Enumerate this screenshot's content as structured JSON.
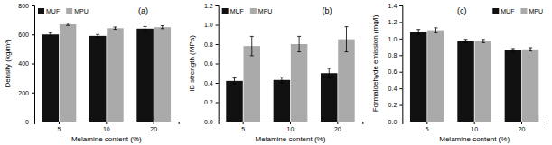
{
  "chart_data": [
    {
      "type": "bar",
      "categories": [
        "5",
        "10",
        "20"
      ],
      "xlabel": "Melamine content (%)",
      "ylabel": "Density (kg/m³)",
      "annotations": [
        "(a)"
      ],
      "ylim": [
        0,
        800
      ],
      "yticks": [
        0,
        200,
        400,
        600,
        800
      ],
      "legend": "upper left",
      "series": [
        {
          "name": "MUF",
          "color": "#111111",
          "values": [
            600,
            590,
            640
          ],
          "errors": [
            10,
            10,
            15
          ]
        },
        {
          "name": "MPU",
          "color": "#aaaaaa",
          "values": [
            670,
            643,
            650
          ],
          "errors": [
            8,
            8,
            10
          ]
        }
      ]
    },
    {
      "type": "bar",
      "categories": [
        "5",
        "10",
        "20"
      ],
      "xlabel": "Melamine content (%)",
      "ylabel": "IB strength (MPa)",
      "annotations": [
        "(b)"
      ],
      "ylim": [
        0.0,
        1.2
      ],
      "yticks": [
        {
          "value": 0.0,
          "label": "0.0"
        },
        0.2,
        0.4,
        0.6,
        0.8,
        {
          "value": 1.0,
          "label": "1.0"
        },
        1.2
      ],
      "legend": "upper left",
      "series": [
        {
          "name": "MUF",
          "color": "#111111",
          "values": [
            0.42,
            0.43,
            0.5
          ],
          "errors": [
            0.03,
            0.03,
            0.05
          ]
        },
        {
          "name": "MPU",
          "color": "#aaaaaa",
          "values": [
            0.78,
            0.8,
            0.85
          ],
          "errors": [
            0.1,
            0.08,
            0.13
          ]
        }
      ]
    },
    {
      "type": "bar",
      "categories": [
        "5",
        "10",
        "20"
      ],
      "xlabel": "Melamine content (%)",
      "ylabel": "Formaldehyde emission (mg/l)",
      "annotations": [
        "(c)"
      ],
      "ylim": [
        0.0,
        1.4
      ],
      "yticks": [
        {
          "value": 0.0,
          "label": "0.0"
        },
        0.2,
        0.4,
        0.6,
        0.8,
        {
          "value": 1.0,
          "label": "1.0"
        },
        1.2,
        1.4
      ],
      "legend": "upper right",
      "series": [
        {
          "name": "MUF",
          "color": "#111111",
          "values": [
            1.08,
            0.97,
            0.86
          ],
          "errors": [
            0.03,
            0.02,
            0.02
          ]
        },
        {
          "name": "MPU",
          "color": "#aaaaaa",
          "values": [
            1.1,
            0.97,
            0.87
          ],
          "errors": [
            0.03,
            0.02,
            0.02
          ]
        }
      ]
    }
  ]
}
